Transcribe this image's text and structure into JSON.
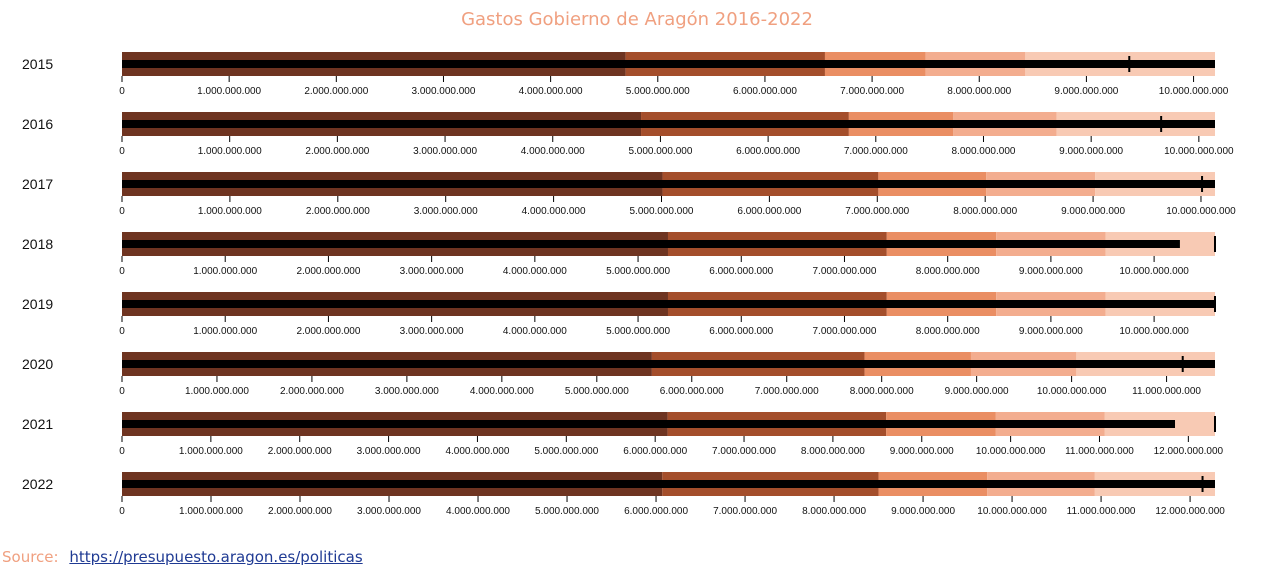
{
  "colors": {
    "ranges": [
      "#6e3421",
      "#a44e2b",
      "#ea8e63",
      "#f3ad8f",
      "#f8cab4"
    ],
    "measure": "#000000",
    "axis": "#000000",
    "title": "#f0a080",
    "link": "#1f3a93"
  },
  "source": {
    "label": "Source:",
    "link_text": "https://presupuesto.aragon.es/politicas"
  },
  "chart_data": {
    "type": "bullet",
    "title": "Gastos Gobierno de Aragón 2016-2022",
    "rows": [
      {
        "label": "2015",
        "max": 10200000000,
        "ticks_step": 1000000000,
        "tick_labels": [
          "0",
          "1.000.000.000",
          "2.000.000.000",
          "3.000.000.000",
          "4.000.000.000",
          "5.000.000.000",
          "6.000.000.000",
          "7.000.000.000",
          "8.000.000.000",
          "9.000.000.000",
          "10.000.000.000"
        ],
        "ranges": [
          4700000000,
          6560000000,
          7500000000,
          8430000000,
          10200000000
        ],
        "measure": 10200000000,
        "marker": 9400000000
      },
      {
        "label": "2016",
        "max": 10150000000,
        "ticks_step": 1000000000,
        "tick_labels": [
          "0",
          "1.000.000.000",
          "2.000.000.000",
          "3.000.000.000",
          "4.000.000.000",
          "5.000.000.000",
          "6.000.000.000",
          "7.000.000.000",
          "8.000.000.000",
          "9.000.000.000",
          "10.000.000.000"
        ],
        "ranges": [
          4820000000,
          6750000000,
          7720000000,
          8680000000,
          10150000000
        ],
        "measure": 10150000000,
        "marker": 9650000000
      },
      {
        "label": "2017",
        "max": 10130000000,
        "ticks_step": 1000000000,
        "tick_labels": [
          "0",
          "1.000.000.000",
          "2.000.000.000",
          "3.000.000.000",
          "4.000.000.000",
          "5.000.000.000",
          "6.000.000.000",
          "7.000.000.000",
          "8.000.000.000",
          "9.000.000.000",
          "10.000.000.000"
        ],
        "ranges": [
          5010000000,
          7010000000,
          8010000000,
          9020000000,
          10130000000
        ],
        "measure": 10130000000,
        "marker": 10010000000
      },
      {
        "label": "2018",
        "max": 10590000000,
        "ticks_step": 1000000000,
        "tick_labels": [
          "0",
          "1.000.000.000",
          "2.000.000.000",
          "3.000.000.000",
          "4.000.000.000",
          "5.000.000.000",
          "6.000.000.000",
          "7.000.000.000",
          "8.000.000.000",
          "9.000.000.000",
          "10.000.000.000"
        ],
        "ranges": [
          5290000000,
          7410000000,
          8470000000,
          9530000000,
          10590000000
        ],
        "measure": 10250000000,
        "marker": 10590000000
      },
      {
        "label": "2019",
        "max": 10590000000,
        "ticks_step": 1000000000,
        "tick_labels": [
          "0",
          "1.000.000.000",
          "2.000.000.000",
          "3.000.000.000",
          "4.000.000.000",
          "5.000.000.000",
          "6.000.000.000",
          "7.000.000.000",
          "8.000.000.000",
          "9.000.000.000",
          "10.000.000.000"
        ],
        "ranges": [
          5290000000,
          7410000000,
          8470000000,
          9530000000,
          10590000000
        ],
        "measure": 10590000000,
        "marker": 10590000000
      },
      {
        "label": "2020",
        "max": 11510000000,
        "ticks_step": 1000000000,
        "tick_labels": [
          "0",
          "1.000.000.000",
          "2.000.000.000",
          "3.000.000.000",
          "4.000.000.000",
          "5.000.000.000",
          "6.000.000.000",
          "7.000.000.000",
          "8.000.000.000",
          "9.000.000.000",
          "10.000.000.000",
          "11.000.000.000"
        ],
        "ranges": [
          5580000000,
          7820000000,
          8940000000,
          10050000000,
          11510000000
        ],
        "measure": 11510000000,
        "marker": 11170000000
      },
      {
        "label": "2021",
        "max": 12300000000,
        "ticks_step": 1000000000,
        "tick_labels": [
          "0",
          "1.000.000.000",
          "2.000.000.000",
          "3.000.000.000",
          "4.000.000.000",
          "5.000.000.000",
          "6.000.000.000",
          "7.000.000.000",
          "8.000.000.000",
          "9.000.000.000",
          "10.000.000.000",
          "11.000.000.000",
          "12.000.000.000"
        ],
        "ranges": [
          6140000000,
          8600000000,
          9830000000,
          11060000000,
          12300000000
        ],
        "measure": 11850000000,
        "marker": 12300000000
      },
      {
        "label": "2022",
        "max": 12280000000,
        "ticks_step": 1000000000,
        "tick_labels": [
          "0",
          "1.000.000.000",
          "2.000.000.000",
          "3.000.000.000",
          "4.000.000.000",
          "5.000.000.000",
          "6.000.000.000",
          "7.000.000.000",
          "8.000.000.000",
          "9.000.000.000",
          "10.000.000.000",
          "11.000.000.000",
          "12.000.000.000"
        ],
        "ranges": [
          6070000000,
          8500000000,
          9720000000,
          10930000000,
          12280000000
        ],
        "measure": 12280000000,
        "marker": 12140000000
      }
    ]
  }
}
